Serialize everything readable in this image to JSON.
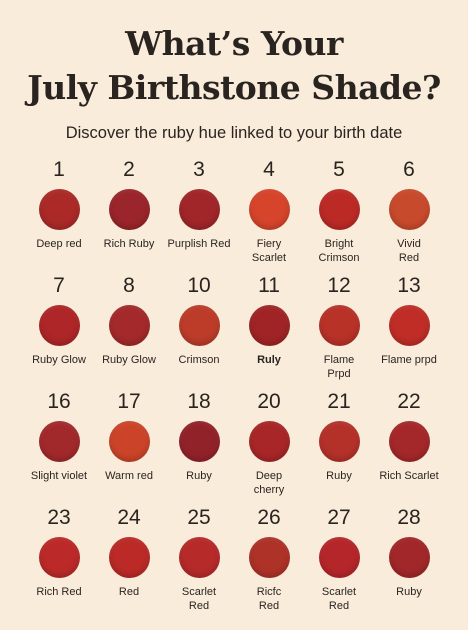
{
  "header": {
    "title_line1": "What’s Your",
    "title_line2": "July Birthstone Shade?",
    "subtitle": "Discover the ruby hue linked to your birth date"
  },
  "shades": [
    {
      "day": "1",
      "label": "Deep red",
      "color": "#ab2a27"
    },
    {
      "day": "2",
      "label": "Rich Ruby",
      "color": "#9a252a"
    },
    {
      "day": "3",
      "label": "Purplish Red",
      "color": "#a02629"
    },
    {
      "day": "4",
      "label": "Fiery\nScarlet",
      "color": "#d6442c"
    },
    {
      "day": "5",
      "label": "Bright\nCrimson",
      "color": "#bc2a26"
    },
    {
      "day": "6",
      "label": "Vivid\nRed",
      "color": "#c84a2c"
    },
    {
      "day": "7",
      "label": "Ruby Glow",
      "color": "#ae2627"
    },
    {
      "day": "8",
      "label": "Ruby Glow",
      "color": "#a4292a"
    },
    {
      "day": "10",
      "label": "Crimson",
      "color": "#bc3c29"
    },
    {
      "day": "11",
      "label": "Ruly",
      "color": "#a02425"
    },
    {
      "day": "12",
      "label": "Flame\nPrpd",
      "color": "#b83228"
    },
    {
      "day": "13",
      "label": "Flame prpd",
      "color": "#c02d27"
    },
    {
      "day": "16",
      "label": "Slight violet",
      "color": "#a2292b"
    },
    {
      "day": "17",
      "label": "Warm red",
      "color": "#cb4429"
    },
    {
      "day": "18",
      "label": "Ruby",
      "color": "#92222a"
    },
    {
      "day": "20",
      "label": "Deep\ncherry",
      "color": "#a82627"
    },
    {
      "day": "21",
      "label": "Ruby",
      "color": "#b4312a"
    },
    {
      "day": "22",
      "label": "Rich Scarlet",
      "color": "#a4282a"
    },
    {
      "day": "23",
      "label": "Rich Red",
      "color": "#bb2a28"
    },
    {
      "day": "24",
      "label": "Red",
      "color": "#bb2a27"
    },
    {
      "day": "25",
      "label": "Scarlet\nRed",
      "color": "#b62a2a"
    },
    {
      "day": "26",
      "label": "Ricfc\nRed",
      "color": "#ae3228"
    },
    {
      "day": "27",
      "label": "Scarlet\nRed",
      "color": "#b5262a"
    },
    {
      "day": "28",
      "label": "Ruby",
      "color": "#a1272a"
    }
  ]
}
